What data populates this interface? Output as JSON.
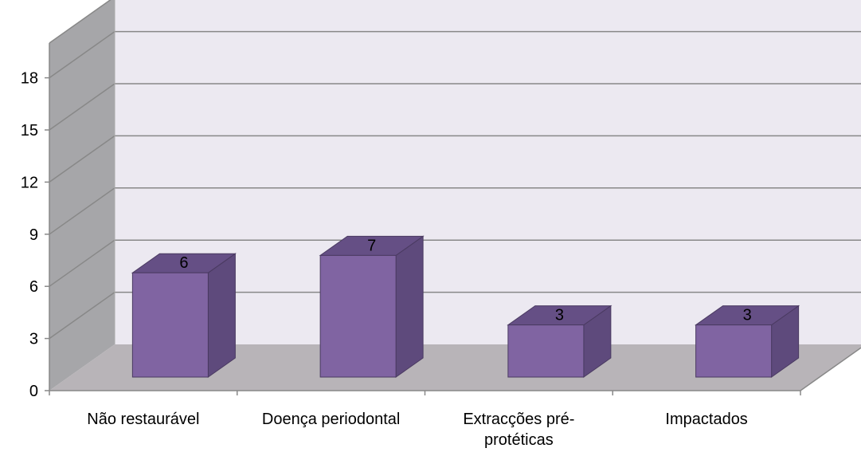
{
  "chart_data": {
    "type": "bar",
    "three_d": true,
    "categories": [
      "Não restaurável",
      "Doença periodontal",
      "Extracções pré-protéticas",
      "Impactados"
    ],
    "category_label_lines": [
      [
        "Não restaurável"
      ],
      [
        "Doença periodontal"
      ],
      [
        "Extracções pré-",
        "protéticas"
      ],
      [
        "Impactados"
      ]
    ],
    "values": [
      6,
      7,
      3,
      3
    ],
    "data_labels": [
      "6",
      "7",
      "3",
      "3"
    ],
    "yticks": [
      0,
      3,
      6,
      9,
      12,
      15,
      18
    ],
    "ytick_labels": [
      "0",
      "3",
      "6",
      "9",
      "12",
      "15",
      "18"
    ],
    "ylim": [
      0,
      18
    ],
    "grid": true,
    "legend": "none",
    "title": "",
    "xlabel": "",
    "ylabel": "",
    "colors": {
      "bar_front": "#8064A2",
      "bar_side": "#5E4A7C",
      "bar_top": "#654F85",
      "bar_edge": "#4A3A61",
      "back_wall": "#ECE9F1",
      "side_wall": "#A6A6A9",
      "floor": "#B8B4B8",
      "grid": "#888888",
      "axis": "#888888"
    }
  }
}
